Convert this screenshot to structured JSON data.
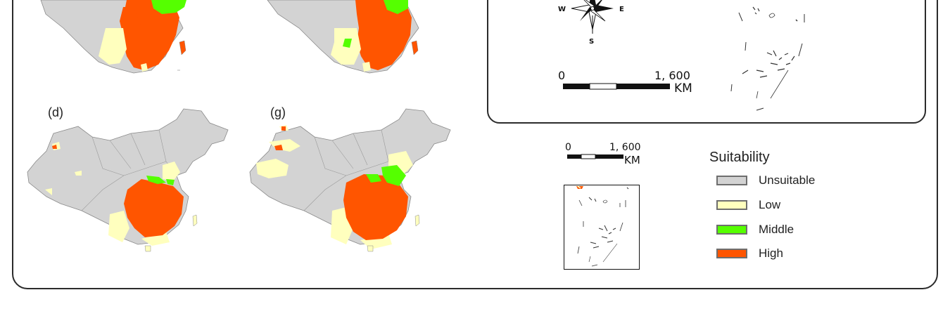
{
  "panels": {
    "d": {
      "label": "(d)"
    },
    "g": {
      "label": "(g)"
    }
  },
  "compass": {
    "west": "W",
    "east": "E",
    "south": "S"
  },
  "scale_bar_top": {
    "start": "0",
    "end": "1, 600",
    "unit": "KM"
  },
  "scale_bar_bottom": {
    "start": "0",
    "end": "1, 600",
    "unit": "KM"
  },
  "legend": {
    "title": "Suitability",
    "items": [
      {
        "label": "Unsuitable",
        "color": "#d3d3d3"
      },
      {
        "label": "Low",
        "color": "#ffffbe"
      },
      {
        "label": "Middle",
        "color": "#55ff00"
      },
      {
        "label": "High",
        "color": "#ff5500"
      }
    ]
  }
}
